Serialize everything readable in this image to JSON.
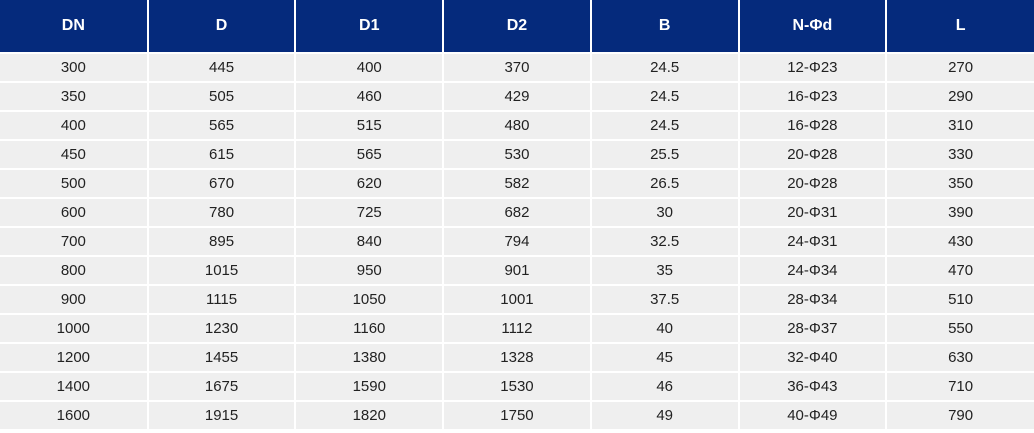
{
  "table": {
    "headers": [
      "DN",
      "D",
      "D1",
      "D2",
      "B",
      "N-Φd",
      "L"
    ],
    "rows": [
      [
        "300",
        "445",
        "400",
        "370",
        "24.5",
        "12-Φ23",
        "270"
      ],
      [
        "350",
        "505",
        "460",
        "429",
        "24.5",
        "16-Φ23",
        "290"
      ],
      [
        "400",
        "565",
        "515",
        "480",
        "24.5",
        "16-Φ28",
        "310"
      ],
      [
        "450",
        "615",
        "565",
        "530",
        "25.5",
        "20-Φ28",
        "330"
      ],
      [
        "500",
        "670",
        "620",
        "582",
        "26.5",
        "20-Φ28",
        "350"
      ],
      [
        "600",
        "780",
        "725",
        "682",
        "30",
        "20-Φ31",
        "390"
      ],
      [
        "700",
        "895",
        "840",
        "794",
        "32.5",
        "24-Φ31",
        "430"
      ],
      [
        "800",
        "1015",
        "950",
        "901",
        "35",
        "24-Φ34",
        "470"
      ],
      [
        "900",
        "1115",
        "1050",
        "1001",
        "37.5",
        "28-Φ34",
        "510"
      ],
      [
        "1000",
        "1230",
        "1160",
        "1112",
        "40",
        "28-Φ37",
        "550"
      ],
      [
        "1200",
        "1455",
        "1380",
        "1328",
        "45",
        "32-Φ40",
        "630"
      ],
      [
        "1400",
        "1675",
        "1590",
        "1530",
        "46",
        "36-Φ43",
        "710"
      ],
      [
        "1600",
        "1915",
        "1820",
        "1750",
        "49",
        "40-Φ49",
        "790"
      ]
    ]
  },
  "colors": {
    "header_bg": "#052a7c",
    "row_bg": "#efefef"
  }
}
